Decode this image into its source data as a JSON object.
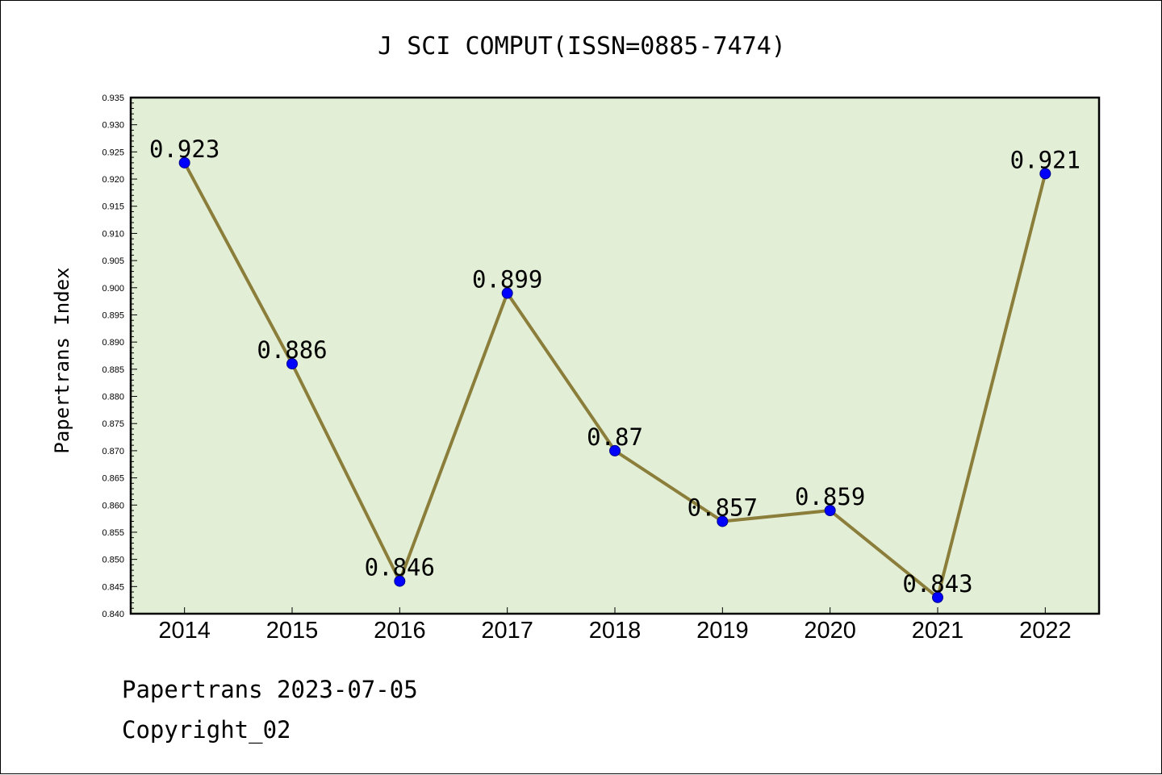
{
  "chart_data": {
    "type": "line",
    "title": "J SCI COMPUT(ISSN=0885-7474)",
    "xlabel": "",
    "ylabel": "Papertrans Index",
    "categories": [
      "2014",
      "2015",
      "2016",
      "2017",
      "2018",
      "2019",
      "2020",
      "2021",
      "2022"
    ],
    "series": [
      {
        "values": [
          0.923,
          0.886,
          0.846,
          0.899,
          0.87,
          0.857,
          0.859,
          0.843,
          0.921
        ],
        "labels": [
          "0.923",
          "0.886",
          "0.846",
          "0.899",
          "0.87",
          "0.857",
          "0.859",
          "0.843",
          "0.921"
        ]
      }
    ],
    "ylim": [
      0.84,
      0.935
    ],
    "ytick_step": 0.005,
    "ytick_labels": [
      "0.840",
      "0.845",
      "0.850",
      "0.855",
      "0.860",
      "0.865",
      "0.870",
      "0.875",
      "0.880",
      "0.885",
      "0.890",
      "0.895",
      "0.900",
      "0.905",
      "0.910",
      "0.915",
      "0.920",
      "0.925",
      "0.930",
      "0.935"
    ],
    "grid": false,
    "legend": "none",
    "colors": {
      "plot_background": "#e2efd6",
      "line": "#8b7d3a",
      "marker": "#0000ff"
    }
  },
  "footer": {
    "line1": "Papertrans 2023-07-05",
    "line2": "Copyright_02"
  }
}
